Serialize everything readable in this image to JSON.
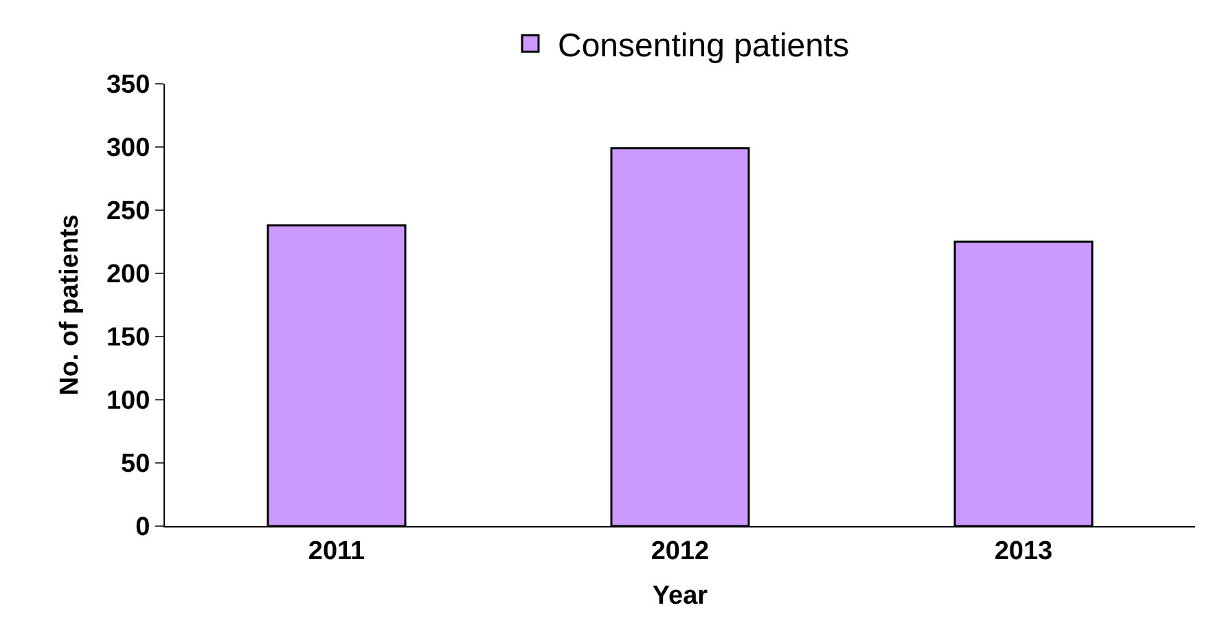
{
  "chart_data": {
    "type": "bar",
    "xlabel": "Year",
    "ylabel": "No. of patients",
    "categories": [
      "2011",
      "2012",
      "2013"
    ],
    "series": [
      {
        "name": "Consenting patients",
        "color": "#cc99ff",
        "values": [
          238,
          299,
          225
        ]
      }
    ],
    "ylim": [
      0,
      350
    ],
    "yticks": [
      0,
      50,
      100,
      150,
      200,
      250,
      300,
      350
    ],
    "legend": "top"
  }
}
